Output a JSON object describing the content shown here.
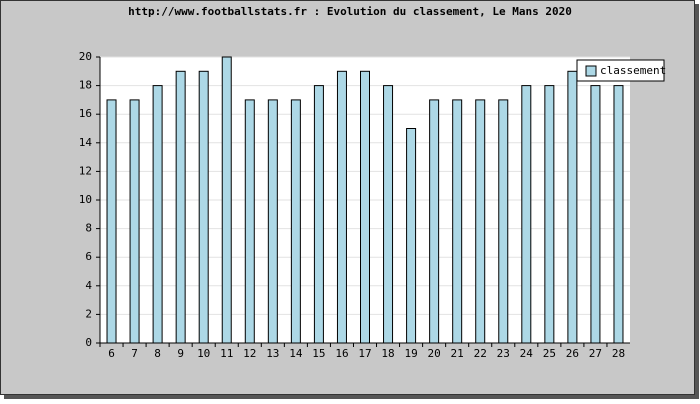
{
  "chart_data": {
    "type": "bar",
    "title": "http://www.footballstats.fr : Evolution du classement, Le Mans 2020",
    "categories": [
      "6",
      "7",
      "8",
      "9",
      "10",
      "11",
      "12",
      "13",
      "14",
      "15",
      "16",
      "17",
      "18",
      "19",
      "20",
      "21",
      "22",
      "23",
      "24",
      "25",
      "26",
      "27",
      "28"
    ],
    "series": [
      {
        "name": "classement",
        "color": "#add8e6",
        "values": [
          17,
          17,
          18,
          19,
          19,
          20,
          17,
          17,
          17,
          18,
          19,
          19,
          18,
          15,
          17,
          17,
          17,
          17,
          18,
          18,
          19,
          18,
          18
        ]
      }
    ],
    "ylim": [
      0,
      20
    ],
    "yticks": [
      0,
      2,
      4,
      6,
      8,
      10,
      12,
      14,
      16,
      18,
      20
    ],
    "grid": true,
    "legend": "top-right"
  }
}
